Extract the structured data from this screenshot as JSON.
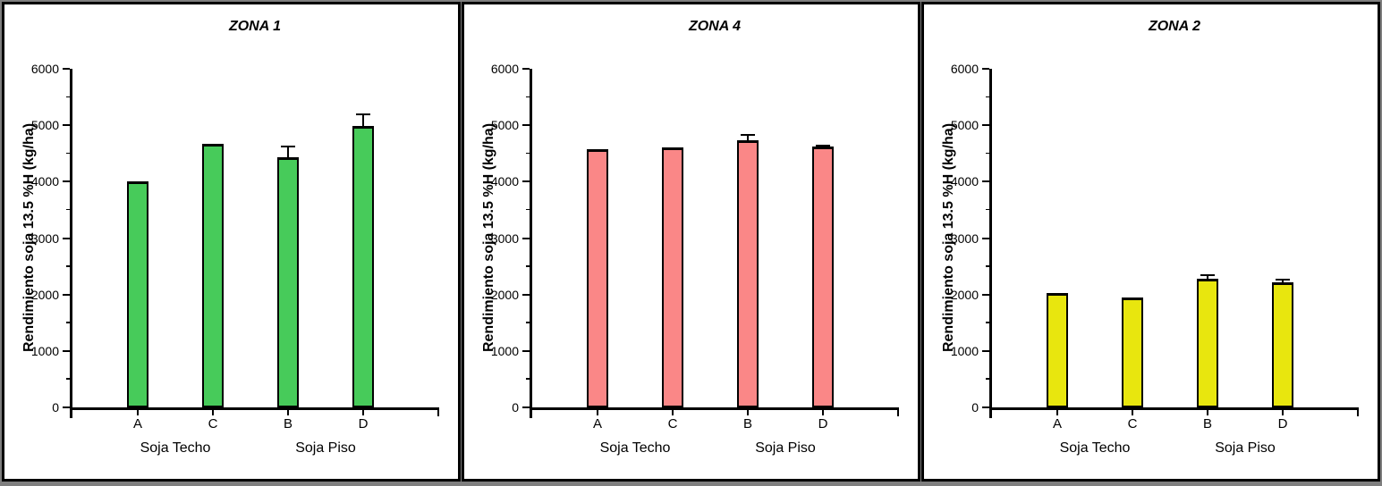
{
  "window": {
    "background_color": "#7f7f7f",
    "panel_border_color": "#000000",
    "panel_background": "#ffffff"
  },
  "chart_data": [
    {
      "type": "bar",
      "title": "ZONA 1",
      "ylabel": "Rendimiento soja 13.5 %H (kg/ha)",
      "xlabel": "",
      "categories": [
        "A",
        "C",
        "B",
        "D"
      ],
      "group_labels": [
        "Soja Techo",
        "Soja Piso"
      ],
      "values": [
        4000,
        4670,
        4440,
        4990
      ],
      "errors": [
        0,
        0,
        180,
        210
      ],
      "bar_color": "#47cb5a",
      "bar_edge_color": "#000000",
      "ylim": [
        0,
        6000
      ],
      "ytick_step": 1000,
      "minor_tick_step": 500,
      "ytick_labels": [
        "0",
        "1000",
        "2000",
        "3000",
        "4000",
        "5000",
        "6000"
      ],
      "grid": "off",
      "legend": "none"
    },
    {
      "type": "bar",
      "title": "ZONA 4",
      "ylabel": "Rendimiento soja 13.5 %H (kg/ha)",
      "xlabel": "",
      "categories": [
        "A",
        "C",
        "B",
        "D"
      ],
      "group_labels": [
        "Soja Techo",
        "Soja Piso"
      ],
      "values": [
        4570,
        4600,
        4730,
        4620
      ],
      "errors": [
        0,
        0,
        95,
        25
      ],
      "bar_color": "#fa8787",
      "bar_edge_color": "#000000",
      "ylim": [
        0,
        6000
      ],
      "ytick_step": 1000,
      "minor_tick_step": 500,
      "ytick_labels": [
        "0",
        "1000",
        "2000",
        "3000",
        "4000",
        "5000",
        "6000"
      ],
      "grid": "off",
      "legend": "none"
    },
    {
      "type": "bar",
      "title": "ZONA 2",
      "ylabel": "Rendimiento soja 13.5 %H (kg/ha)",
      "xlabel": "",
      "categories": [
        "A",
        "C",
        "B",
        "D"
      ],
      "group_labels": [
        "Soja Techo",
        "Soja Piso"
      ],
      "values": [
        2030,
        1950,
        2280,
        2210
      ],
      "errors": [
        0,
        0,
        70,
        50
      ],
      "bar_color": "#e8e60e",
      "bar_edge_color": "#000000",
      "ylim": [
        0,
        6000
      ],
      "ytick_step": 1000,
      "minor_tick_step": 500,
      "ytick_labels": [
        "0",
        "1000",
        "2000",
        "3000",
        "4000",
        "5000",
        "6000"
      ],
      "grid": "off",
      "legend": "none"
    }
  ]
}
